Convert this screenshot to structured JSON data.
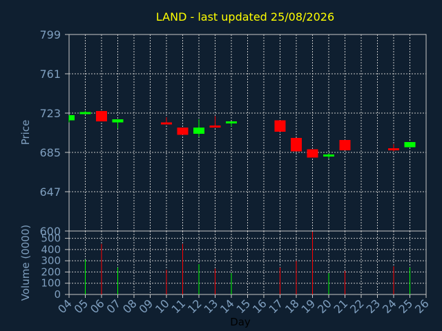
{
  "chart_data": {
    "type": "candlestick",
    "title": "LAND - last updated 25/08/2026",
    "xlabel": "Day",
    "ylabel": "Price",
    "volume_label": "Volume (0000)",
    "x_ticks": [
      "04",
      "05",
      "06",
      "07",
      "08",
      "09",
      "10",
      "11",
      "12",
      "13",
      "14",
      "15",
      "16",
      "17",
      "18",
      "19",
      "20",
      "21",
      "22",
      "23",
      "24",
      "25",
      "26"
    ],
    "price_ticks": [
      "799",
      "761",
      "723",
      "685",
      "647",
      "600"
    ],
    "price_tick_values": [
      799,
      761,
      723,
      685,
      647,
      600
    ],
    "volume_ticks": [
      "500",
      "400",
      "300",
      "200",
      "100",
      "0"
    ],
    "volume_tick_values": [
      500,
      400,
      300,
      200,
      100,
      0
    ],
    "price_ylim": [
      609,
      799
    ],
    "volume_ylim": [
      0,
      565
    ],
    "grid": true,
    "colors": {
      "background": "#0f1f30",
      "plot": "#0f1f30",
      "up": "#00ff00",
      "down": "#ff0000",
      "grid": "#c8c8c8",
      "title": "#ffff00",
      "axis_text": "#7f9fbf"
    },
    "candles": [
      {
        "day": "04",
        "open": 716,
        "high": 721,
        "low": 714,
        "close": 721,
        "volume": 0
      },
      {
        "day": "05",
        "open": 722,
        "high": 725,
        "low": 722,
        "close": 724,
        "volume": 310
      },
      {
        "day": "06",
        "open": 725,
        "high": 725,
        "low": 715,
        "close": 715,
        "volume": 450
      },
      {
        "day": "07",
        "open": 714,
        "high": 717,
        "low": 708,
        "close": 717,
        "volume": 240
      },
      {
        "day": "10",
        "open": 714,
        "high": 719,
        "low": 712,
        "close": 712,
        "volume": 220
      },
      {
        "day": "11",
        "open": 709,
        "high": 709,
        "low": 702,
        "close": 702,
        "volume": 450
      },
      {
        "day": "12",
        "open": 703,
        "high": 717,
        "low": 700,
        "close": 709,
        "volume": 270
      },
      {
        "day": "13",
        "open": 711,
        "high": 720,
        "low": 709,
        "close": 709,
        "volume": 230
      },
      {
        "day": "14",
        "open": 713,
        "high": 715,
        "low": 710,
        "close": 715,
        "volume": 190
      },
      {
        "day": "17",
        "open": 716,
        "high": 716,
        "low": 705,
        "close": 705,
        "volume": 240
      },
      {
        "day": "18",
        "open": 699,
        "high": 699,
        "low": 686,
        "close": 686,
        "volume": 300
      },
      {
        "day": "19",
        "open": 688,
        "high": 688,
        "low": 680,
        "close": 680,
        "volume": 560
      },
      {
        "day": "20",
        "open": 681,
        "high": 684,
        "low": 679,
        "close": 683,
        "volume": 190
      },
      {
        "day": "21",
        "open": 697,
        "high": 697,
        "low": 687,
        "close": 687,
        "volume": 210
      },
      {
        "day": "24",
        "open": 689,
        "high": 693,
        "low": 686,
        "close": 687,
        "volume": 250
      },
      {
        "day": "25",
        "open": 690,
        "high": 695,
        "low": 690,
        "close": 695,
        "volume": 240
      }
    ]
  }
}
